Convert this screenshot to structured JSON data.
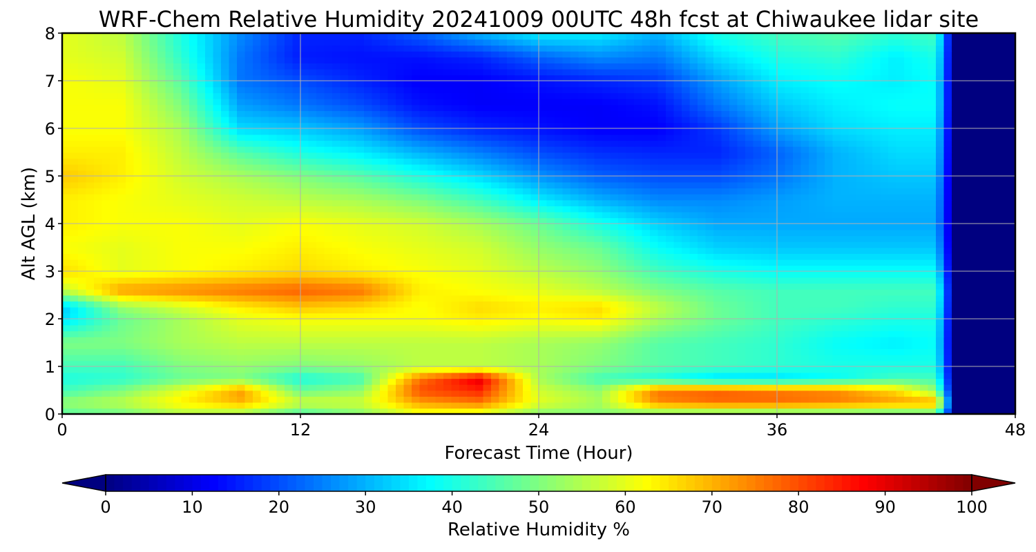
{
  "chart_data": {
    "type": "heatmap",
    "title": "WRF-Chem Relative Humidity 20241009 00UTC 48h fcst at Chiwaukee lidar site",
    "xlabel": "Forecast Time (Hour)",
    "ylabel": "Alt AGL (km)",
    "xlim": [
      0,
      48
    ],
    "ylim": [
      0,
      8
    ],
    "xticks": [
      0,
      12,
      24,
      36,
      48
    ],
    "yticks": [
      0,
      1,
      2,
      3,
      4,
      5,
      6,
      7,
      8
    ],
    "grid": true,
    "colormap": "jet",
    "colorbar": {
      "label": "Relative Humidity %",
      "ticks": [
        0,
        10,
        20,
        30,
        40,
        50,
        60,
        70,
        80,
        90,
        100
      ],
      "range": [
        0,
        100
      ],
      "extend": "both",
      "orientation": "horizontal"
    },
    "x": [
      0,
      3,
      6,
      9,
      12,
      15,
      18,
      21,
      24,
      27,
      30,
      33,
      36,
      39,
      42,
      44,
      45,
      48
    ],
    "y": [
      0,
      0.25,
      0.5,
      0.75,
      1,
      1.5,
      2,
      2.25,
      2.6,
      3,
      3.5,
      4,
      4.5,
      5,
      5.5,
      6,
      6.5,
      7,
      7.5,
      8
    ],
    "z": [
      [
        46,
        48,
        54,
        52,
        44,
        50,
        60,
        58,
        50,
        50,
        48,
        47,
        46,
        46,
        45,
        45,
        0,
        0
      ],
      [
        52,
        56,
        64,
        70,
        58,
        58,
        72,
        76,
        60,
        54,
        74,
        77,
        77,
        75,
        72,
        72,
        0,
        0
      ],
      [
        44,
        50,
        60,
        72,
        48,
        52,
        80,
        84,
        58,
        52,
        76,
        78,
        76,
        74,
        66,
        52,
        0,
        0
      ],
      [
        40,
        42,
        48,
        50,
        40,
        44,
        76,
        90,
        54,
        44,
        40,
        34,
        34,
        38,
        44,
        44,
        0,
        0
      ],
      [
        44,
        44,
        50,
        52,
        50,
        52,
        56,
        56,
        54,
        50,
        46,
        44,
        42,
        40,
        40,
        40,
        0,
        0
      ],
      [
        50,
        50,
        54,
        56,
        56,
        56,
        56,
        56,
        54,
        52,
        46,
        44,
        42,
        38,
        36,
        38,
        0,
        0
      ],
      [
        34,
        48,
        54,
        60,
        62,
        62,
        62,
        64,
        62,
        64,
        54,
        48,
        44,
        42,
        40,
        40,
        0,
        0
      ],
      [
        32,
        52,
        58,
        64,
        68,
        66,
        62,
        66,
        64,
        66,
        56,
        48,
        44,
        44,
        42,
        42,
        0,
        0
      ],
      [
        56,
        72,
        74,
        76,
        78,
        76,
        64,
        62,
        60,
        56,
        50,
        46,
        44,
        44,
        44,
        44,
        0,
        0
      ],
      [
        66,
        60,
        62,
        64,
        66,
        64,
        62,
        60,
        56,
        52,
        44,
        40,
        38,
        38,
        38,
        38,
        0,
        0
      ],
      [
        62,
        60,
        62,
        62,
        64,
        62,
        60,
        58,
        52,
        48,
        38,
        33,
        32,
        32,
        32,
        32,
        0,
        0
      ],
      [
        64,
        62,
        62,
        60,
        62,
        60,
        58,
        54,
        48,
        40,
        33,
        29,
        29,
        29,
        29,
        29,
        0,
        0
      ],
      [
        64,
        62,
        60,
        58,
        56,
        54,
        50,
        44,
        36,
        30,
        26,
        26,
        28,
        30,
        30,
        30,
        0,
        0
      ],
      [
        68,
        64,
        58,
        54,
        50,
        46,
        40,
        34,
        27,
        22,
        20,
        20,
        24,
        30,
        32,
        32,
        0,
        0
      ],
      [
        64,
        64,
        56,
        46,
        40,
        36,
        30,
        25,
        20,
        17,
        16,
        16,
        22,
        30,
        34,
        34,
        0,
        0
      ],
      [
        62,
        62,
        54,
        34,
        32,
        28,
        20,
        16,
        14,
        12,
        12,
        18,
        28,
        34,
        36,
        36,
        0,
        0
      ],
      [
        62,
        62,
        50,
        28,
        24,
        20,
        14,
        12,
        12,
        12,
        14,
        24,
        32,
        36,
        38,
        38,
        0,
        0
      ],
      [
        62,
        60,
        46,
        24,
        20,
        16,
        12,
        12,
        14,
        16,
        18,
        28,
        36,
        38,
        36,
        38,
        0,
        0
      ],
      [
        60,
        58,
        42,
        24,
        15,
        14,
        14,
        16,
        22,
        26,
        24,
        34,
        40,
        42,
        36,
        40,
        0,
        0
      ],
      [
        60,
        56,
        40,
        26,
        16,
        16,
        22,
        30,
        36,
        36,
        30,
        40,
        44,
        46,
        42,
        44,
        0,
        0
      ]
    ]
  }
}
